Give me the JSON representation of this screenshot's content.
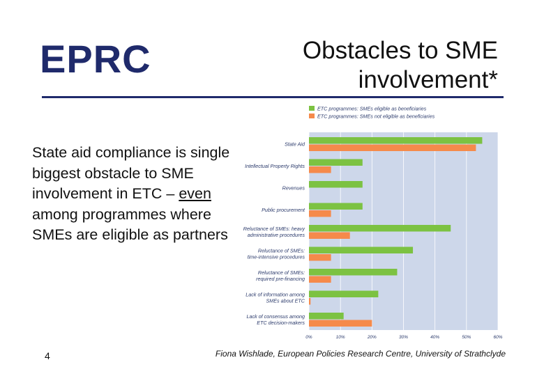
{
  "header": {
    "logo_text": "EPRC",
    "title_line1": "Obstacles to SME",
    "title_line2": "involvement*"
  },
  "body": {
    "p1": "State aid compliance is single biggest obstacle to SME involvement in ETC – ",
    "emph": "even",
    "p2": " among programmes where SMEs are eligible as partners"
  },
  "footer": {
    "page_number": "4",
    "credit": "Fiona Wishlade, European Policies Research Centre, University of Strathclyde"
  },
  "colors": {
    "green": "#7cc242",
    "orange": "#f58a4b",
    "plot_bg": "#cdd7ea",
    "navy": "#1f2a6b"
  },
  "chart_data": {
    "type": "bar",
    "orientation": "horizontal",
    "categories": [
      [
        "State Aid"
      ],
      [
        "Intellectual Property Rights"
      ],
      [
        "Revenues"
      ],
      [
        "Public procurement"
      ],
      [
        "Reluctance of SMEs: heavy",
        "administrative procedures"
      ],
      [
        "Reluctance of SMEs:",
        "time-intensive procedures"
      ],
      [
        "Reluctance of SMEs:",
        "required pre-financing"
      ],
      [
        "Lack of information among",
        "SMEs about ETC"
      ],
      [
        "Lack of consensus among",
        "ETC decision-makers"
      ]
    ],
    "series": [
      {
        "name": "ETC programmes: SMEs eligible as beneficiaries",
        "color": "#7cc242",
        "values": [
          55,
          17,
          17,
          17,
          45,
          33,
          28,
          22,
          11
        ]
      },
      {
        "name": "ETC programmes: SMEs not eligible as beneficiaries",
        "color": "#f58a4b",
        "values": [
          53,
          7,
          0,
          7,
          13,
          7,
          7,
          0.5,
          20
        ]
      }
    ],
    "xlim": [
      0,
      60
    ],
    "xticks": [
      "0%",
      "10%",
      "20%",
      "30%",
      "40%",
      "50%",
      "60%"
    ],
    "grid": true,
    "legend_position": "top"
  }
}
